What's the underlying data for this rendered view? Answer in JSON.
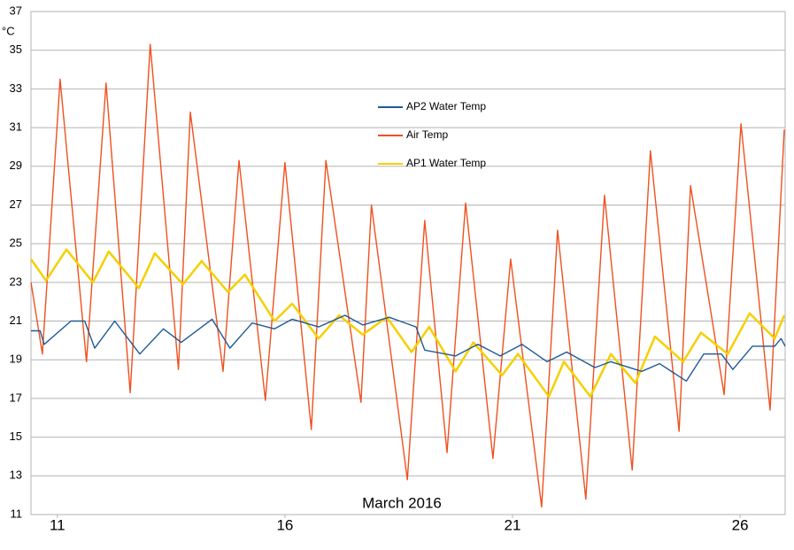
{
  "chart_data": {
    "type": "line",
    "y_unit": "°C",
    "x_label": "March 2016",
    "xlim": [
      10.42,
      26.99
    ],
    "xticks": [
      11,
      16,
      21,
      26
    ],
    "ylim": [
      11,
      37
    ],
    "yticks": [
      11,
      13,
      15,
      17,
      19,
      21,
      23,
      25,
      27,
      29,
      31,
      33,
      35,
      37
    ],
    "grid": true,
    "series": [
      {
        "name": "AP2 Water Temp",
        "color": "#1f5a96",
        "x": [
          10.42,
          10.62,
          10.71,
          11.3,
          11.6,
          11.82,
          12.26,
          12.81,
          13.33,
          13.72,
          14.4,
          14.79,
          15.28,
          15.77,
          16.16,
          16.74,
          17.32,
          17.71,
          18.29,
          18.88,
          19.07,
          19.75,
          20.24,
          20.73,
          21.21,
          21.76,
          22.19,
          22.81,
          23.16,
          23.84,
          24.23,
          24.82,
          25.2,
          25.59,
          25.84,
          26.27,
          26.76,
          26.9,
          26.99
        ],
        "values": [
          20.5,
          20.5,
          19.8,
          21.0,
          21.0,
          19.6,
          21.0,
          19.3,
          20.6,
          19.9,
          21.1,
          19.6,
          20.9,
          20.6,
          21.1,
          20.7,
          21.3,
          20.8,
          21.2,
          20.7,
          19.5,
          19.2,
          19.8,
          19.2,
          19.8,
          18.9,
          19.4,
          18.6,
          18.9,
          18.4,
          18.8,
          17.9,
          19.3,
          19.3,
          18.5,
          19.7,
          19.7,
          20.1,
          19.7
        ]
      },
      {
        "name": "Air Temp",
        "color": "#f0501e",
        "x": [
          10.42,
          10.67,
          11.06,
          11.64,
          12.07,
          12.6,
          13.04,
          13.66,
          13.92,
          14.64,
          14.99,
          15.57,
          16.0,
          16.58,
          16.9,
          17.67,
          17.9,
          18.69,
          19.07,
          19.56,
          19.97,
          20.57,
          20.96,
          21.64,
          21.99,
          22.61,
          23.02,
          23.63,
          24.03,
          24.66,
          24.91,
          25.65,
          26.02,
          26.66,
          26.97
        ],
        "values": [
          23.0,
          19.3,
          33.5,
          18.9,
          33.3,
          17.3,
          35.3,
          18.5,
          31.8,
          18.4,
          29.3,
          16.9,
          29.2,
          15.4,
          29.3,
          16.8,
          27.0,
          12.8,
          26.2,
          14.2,
          27.1,
          13.9,
          24.2,
          11.4,
          25.7,
          11.8,
          27.5,
          13.3,
          29.8,
          15.3,
          28.0,
          17.2,
          31.2,
          16.4,
          30.9
        ]
      },
      {
        "name": "AP1 Water Temp",
        "color": "#f5d000",
        "x": [
          10.42,
          10.75,
          11.2,
          11.78,
          12.13,
          12.79,
          13.14,
          13.76,
          14.17,
          14.75,
          15.12,
          15.77,
          16.16,
          16.74,
          17.19,
          17.71,
          18.24,
          18.78,
          19.17,
          19.75,
          20.14,
          20.77,
          21.12,
          21.8,
          22.13,
          22.71,
          23.16,
          23.7,
          24.13,
          24.75,
          25.14,
          25.73,
          26.21,
          26.76,
          26.97
        ],
        "values": [
          24.2,
          23.1,
          24.7,
          23.0,
          24.6,
          22.7,
          24.5,
          22.9,
          24.1,
          22.5,
          23.4,
          21.0,
          21.9,
          20.1,
          21.3,
          20.3,
          21.2,
          19.4,
          20.7,
          18.4,
          19.9,
          18.2,
          19.3,
          17.1,
          18.9,
          17.1,
          19.3,
          17.8,
          20.2,
          18.9,
          20.4,
          19.3,
          21.4,
          20.1,
          21.3
        ]
      }
    ]
  }
}
